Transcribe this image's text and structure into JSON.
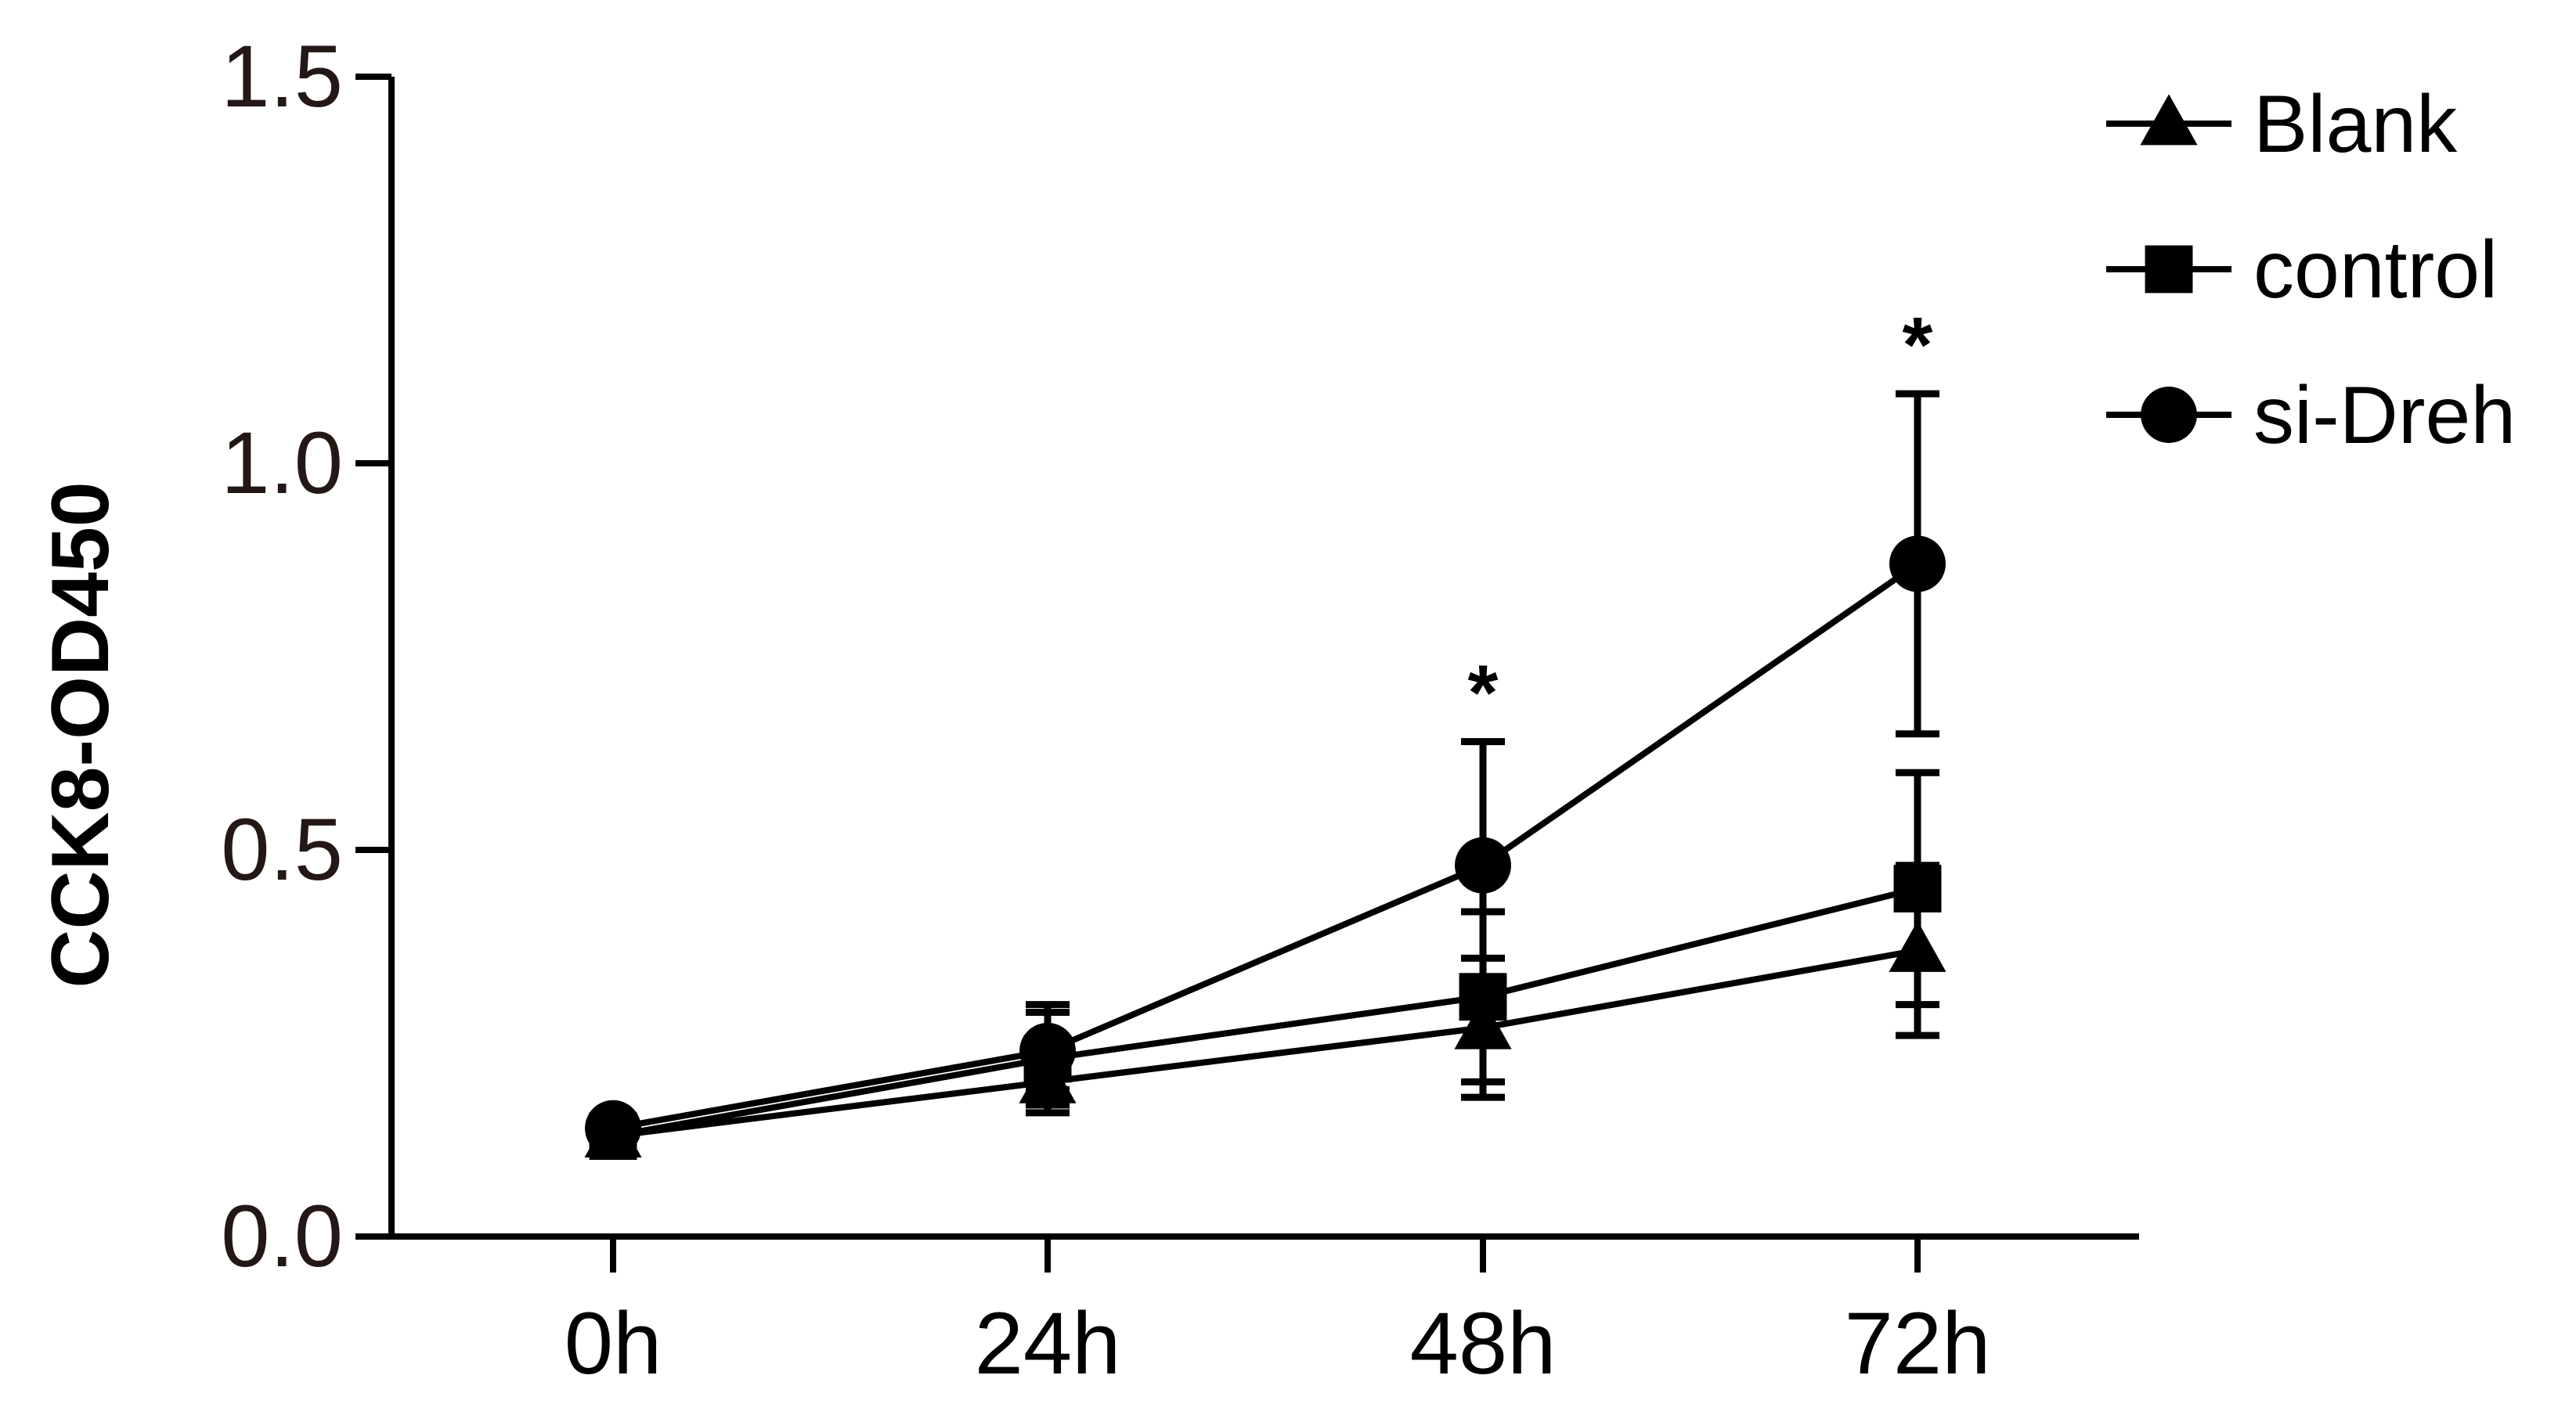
{
  "chart_data": {
    "type": "line",
    "title": "",
    "xlabel": "",
    "ylabel": "CCK8-OD450",
    "categories": [
      "0h",
      "24h",
      "48h",
      "72h"
    ],
    "ylim": [
      0,
      1.5
    ],
    "yticks": [
      "0.0",
      "0.5",
      "1.0",
      "1.5"
    ],
    "legend_position": "top-right",
    "grid": false,
    "series": [
      {
        "name": "Blank",
        "marker": "triangle",
        "values": [
          0.13,
          0.2,
          0.27,
          0.37
        ],
        "errors": [
          0.01,
          0.03,
          0.09,
          0.11
        ]
      },
      {
        "name": "control",
        "marker": "square",
        "values": [
          0.13,
          0.23,
          0.31,
          0.45
        ],
        "errors": [
          0.01,
          0.07,
          0.11,
          0.15
        ]
      },
      {
        "name": "si-Dreh",
        "marker": "circle",
        "values": [
          0.14,
          0.24,
          0.48,
          0.87
        ],
        "errors": [
          0.01,
          0.05,
          0.16,
          0.22
        ]
      }
    ],
    "annotations": [
      {
        "category": "48h",
        "text": "*"
      },
      {
        "category": "72h",
        "text": "*"
      }
    ],
    "colors": {
      "line": "#000000",
      "tick_text": "#231816"
    }
  }
}
